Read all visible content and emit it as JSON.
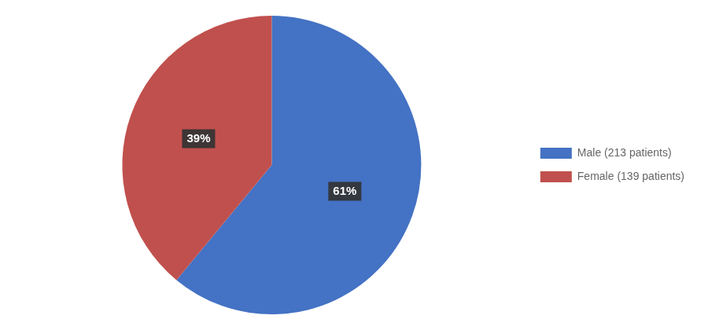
{
  "chart_data": {
    "type": "pie",
    "categories": [
      "Male (213 patients)",
      "Female (139 patients)"
    ],
    "values": [
      61,
      39
    ],
    "value_labels": [
      "61%",
      "39%"
    ],
    "colors": [
      "#4472C4",
      "#C0504D"
    ],
    "data_labels": true,
    "legend": "right"
  }
}
